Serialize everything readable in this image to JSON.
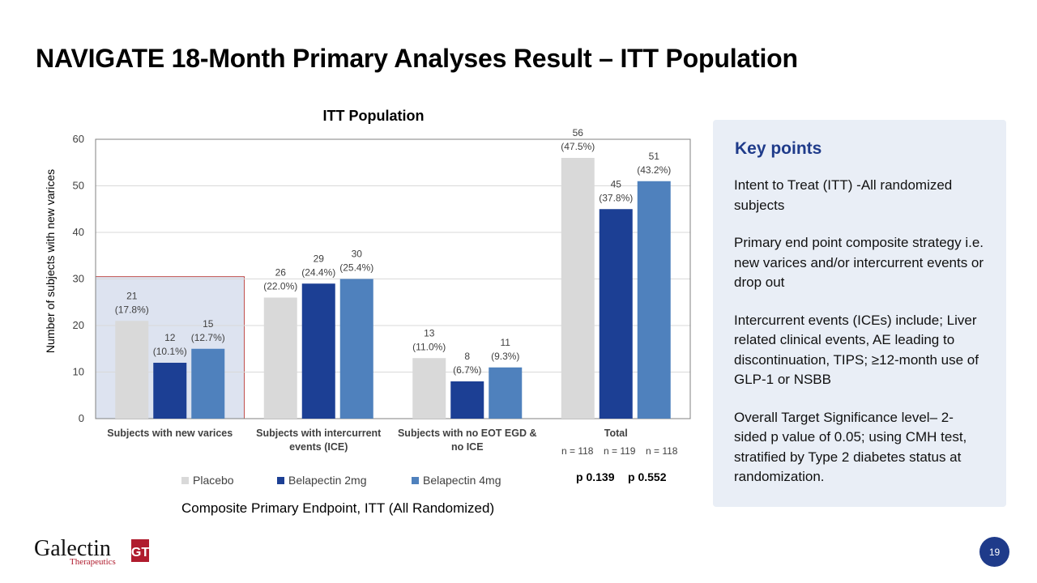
{
  "slide": {
    "title": "NAVIGATE 18-Month Primary Analyses Result – ITT Population",
    "caption": "Composite Primary Endpoint, ITT (All Randomized)",
    "page_number": "19"
  },
  "colors": {
    "placebo": "#d9d9d9",
    "bel2": "#1c3f94",
    "bel4": "#4f81bd",
    "accent": "#1f3b8a",
    "highlight_border": "#c0504d",
    "highlight_fill": "#dde3f0"
  },
  "chart_data": {
    "type": "bar",
    "title": "ITT Population",
    "xlabel": "",
    "ylabel": "Number of subjects with new varices",
    "ylim": [
      0,
      60
    ],
    "yticks": [
      0,
      10,
      20,
      30,
      40,
      50,
      60
    ],
    "grid": true,
    "legend_position": "bottom",
    "categories": [
      "Subjects with new varices",
      "Subjects with intercurrent events (ICE)",
      "Subjects with no EOT EGD & no ICE",
      "Total"
    ],
    "category_label_lines": [
      [
        "Subjects with new varices"
      ],
      [
        "Subjects with intercurrent",
        "events (ICE)"
      ],
      [
        "Subjects with no EOT EGD &",
        "no ICE"
      ],
      [
        "Total"
      ]
    ],
    "series": [
      {
        "name": "Placebo",
        "values": [
          21,
          26,
          13,
          56
        ],
        "percents": [
          "(17.8%)",
          "(22.0%)",
          "(11.0%)",
          "(47.5%)"
        ]
      },
      {
        "name": "Belapectin 2mg",
        "values": [
          12,
          29,
          8,
          45
        ],
        "percents": [
          "(10.1%)",
          "(24.4%)",
          "(6.7%)",
          "(37.8%)"
        ]
      },
      {
        "name": "Belapectin 4mg",
        "values": [
          15,
          30,
          11,
          51
        ],
        "percents": [
          "(12.7%)",
          "(25.4%)",
          "(9.3%)",
          "(43.2%)"
        ]
      }
    ],
    "highlighted_category": "Subjects with new varices",
    "group_sizes": [
      "n = 118",
      "n = 119",
      "n = 118"
    ],
    "p_values": [
      "p 0.139",
      "p 0.552"
    ]
  },
  "key_points": {
    "title": "Key points",
    "items": [
      "Intent to Treat (ITT) -All randomized subjects",
      "Primary end point composite strategy i.e. new varices and/or intercurrent events or drop out",
      "Intercurrent events (ICEs) include; Liver related clinical events, AE leading to discontinuation, TIPS;  ≥12-month use of GLP-1 or NSBB",
      "Overall Target Significance level– 2-sided p value of 0.05; using CMH test, stratified by Type 2 diabetes status at randomization."
    ]
  },
  "logo": {
    "name": "Galectin",
    "tagline": "Therapeutics",
    "mark": "GT"
  }
}
